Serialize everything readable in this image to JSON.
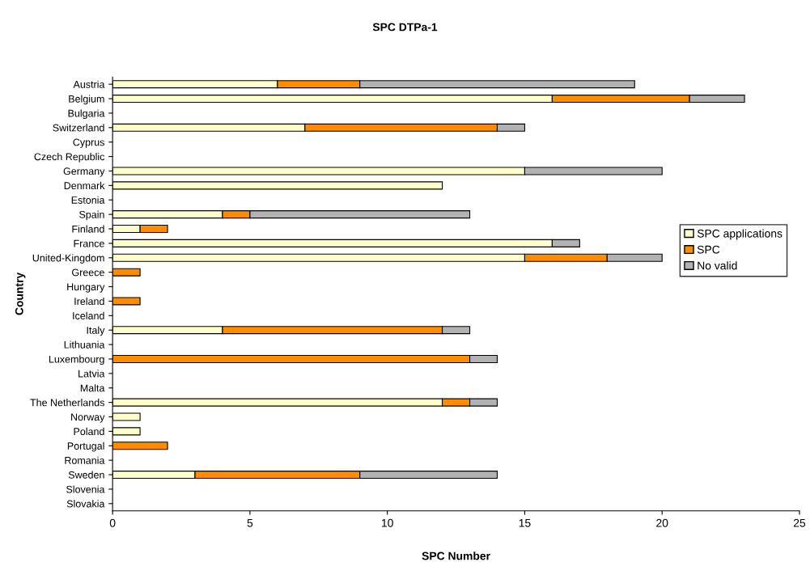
{
  "chart_data": {
    "type": "bar",
    "orientation": "horizontal",
    "stacked": true,
    "title": "SPC DTPa-1",
    "xlabel": "SPC Number",
    "ylabel": "Country",
    "categories": [
      "Austria",
      "Belgium",
      "Bulgaria",
      "Switzerland",
      "Cyprus",
      "Czech Republic",
      "Germany",
      "Denmark",
      "Estonia",
      "Spain",
      "Finland",
      "France",
      "United-Kingdom",
      "Greece",
      "Hungary",
      "Ireland",
      "Iceland",
      "Italy",
      "Lithuania",
      "Luxembourg",
      "Latvia",
      "Malta",
      "The Netherlands",
      "Norway",
      "Poland",
      "Portugal",
      "Romania",
      "Sweden",
      "Slovenia",
      "Slovakia"
    ],
    "series": [
      {
        "name": "SPC applications",
        "color": "#ffffcc",
        "values": [
          6,
          16,
          0,
          7,
          0,
          0,
          15,
          12,
          0,
          4,
          1,
          16,
          15,
          0,
          0,
          0,
          0,
          4,
          0,
          0,
          0,
          0,
          12,
          1,
          1,
          0,
          0,
          3,
          0,
          0
        ]
      },
      {
        "name": "SPC",
        "color": "#ff8c00",
        "values": [
          3,
          5,
          0,
          7,
          0,
          0,
          0,
          0,
          0,
          1,
          1,
          0,
          3,
          1,
          0,
          1,
          0,
          8,
          0,
          13,
          0,
          0,
          1,
          0,
          0,
          2,
          0,
          6,
          0,
          0
        ]
      },
      {
        "name": "No valid",
        "color": "#b2b2b2",
        "values": [
          10,
          2,
          0,
          1,
          0,
          0,
          5,
          0,
          0,
          8,
          0,
          1,
          2,
          0,
          0,
          0,
          0,
          1,
          0,
          1,
          0,
          0,
          1,
          0,
          0,
          0,
          0,
          5,
          0,
          0
        ]
      }
    ],
    "xlim": [
      0,
      25
    ],
    "xticks": [
      0,
      5,
      10,
      15,
      20,
      25
    ],
    "legend": "right",
    "grid": false
  }
}
